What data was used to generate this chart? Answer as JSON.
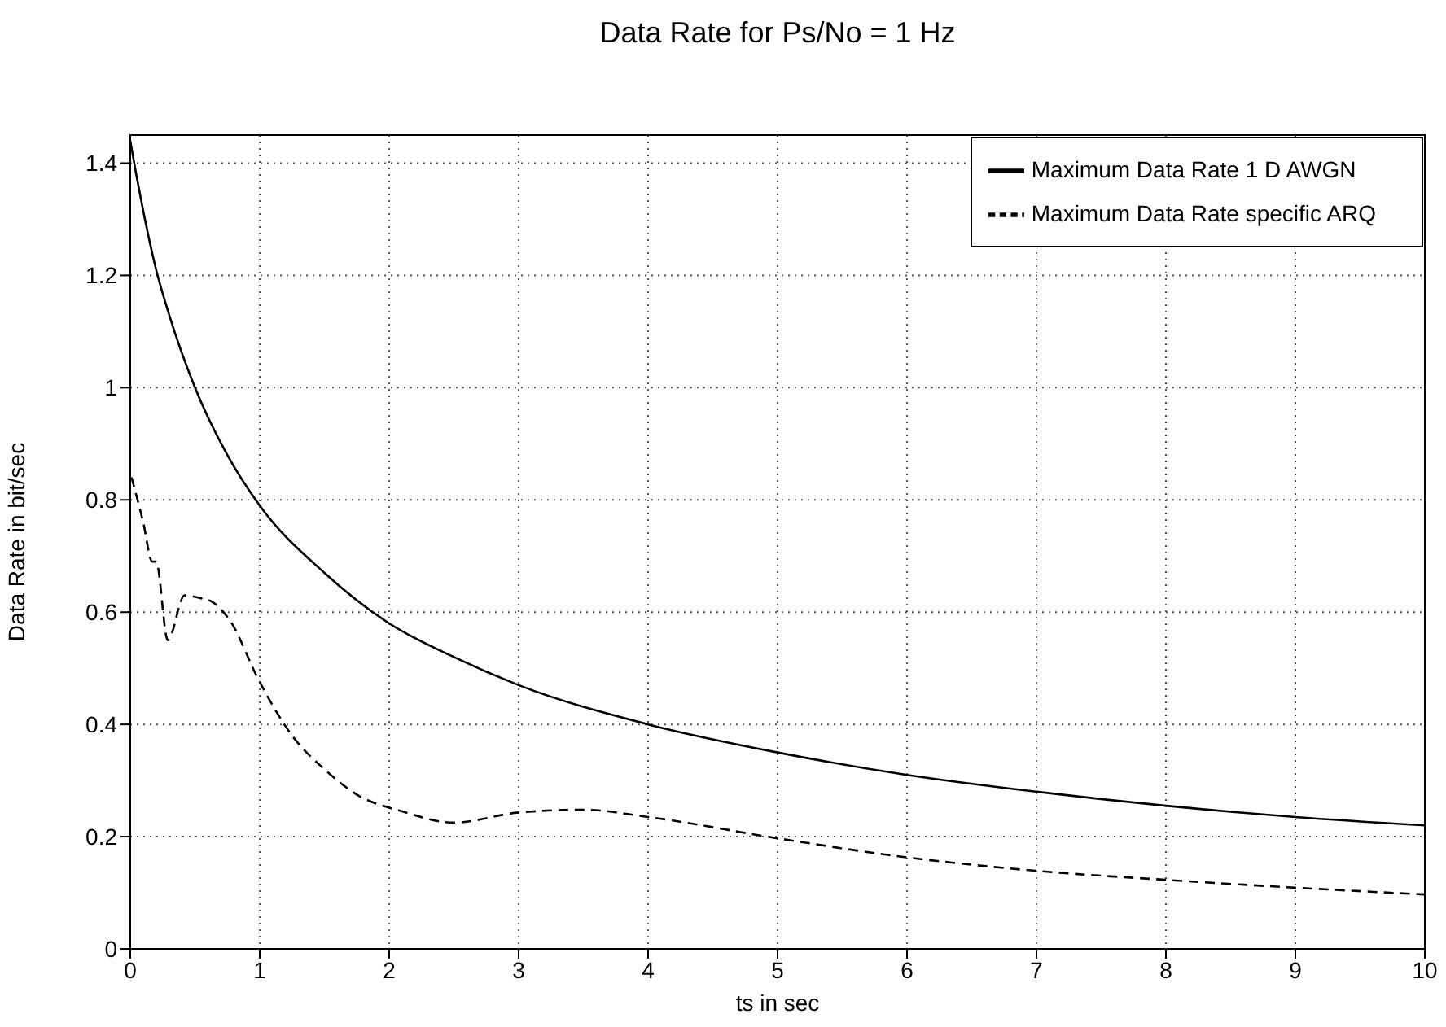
{
  "chart_data": {
    "type": "line",
    "title": "Data Rate for Ps/No = 1 Hz",
    "xlabel": "ts in sec",
    "ylabel": "Data Rate in bit/sec",
    "xlim": [
      0,
      10
    ],
    "xticks": [
      0,
      1,
      2,
      3,
      4,
      5,
      6,
      7,
      8,
      9,
      10
    ],
    "ylim": [
      0,
      1.45
    ],
    "yticks": [
      0,
      0.2,
      0.4,
      0.6,
      0.8,
      1,
      1.2,
      1.4
    ],
    "grid": true,
    "legend": "top right",
    "series": [
      {
        "name": "Maximum Data Rate 1 D AWGN",
        "color": "#000000",
        "line_style": "solid",
        "x": [
          0,
          0.05,
          0.1,
          0.2,
          0.3,
          0.5,
          0.75,
          1,
          1.5,
          2,
          2.5,
          3,
          4,
          5,
          6,
          7,
          8,
          9,
          10
        ],
        "values": [
          1.44,
          1.375,
          1.315,
          1.21,
          1.13,
          1,
          0.88,
          0.79,
          0.67,
          0.58,
          0.52,
          0.47,
          0.4,
          0.35,
          0.31,
          0.28,
          0.255,
          0.235,
          0.22
        ]
      },
      {
        "name": "Maximum Data Rate specific ARQ",
        "color": "#000000",
        "line_style": "dashed",
        "x": [
          0.01,
          0.1,
          0.17,
          0.2,
          0.29,
          0.42,
          0.54,
          0.62,
          0.77,
          0.99,
          1.25,
          1.5,
          1.75,
          2.1,
          2.5,
          3,
          3.5,
          4,
          5,
          6,
          7,
          8,
          9,
          10
        ],
        "values": [
          0.84,
          0.76,
          0.69,
          0.69,
          0.55,
          0.63,
          0.625,
          0.62,
          0.585,
          0.48,
          0.38,
          0.32,
          0.275,
          0.245,
          0.225,
          0.243,
          0.248,
          0.235,
          0.197,
          0.163,
          0.139,
          0.123,
          0.109,
          0.097
        ]
      }
    ]
  }
}
